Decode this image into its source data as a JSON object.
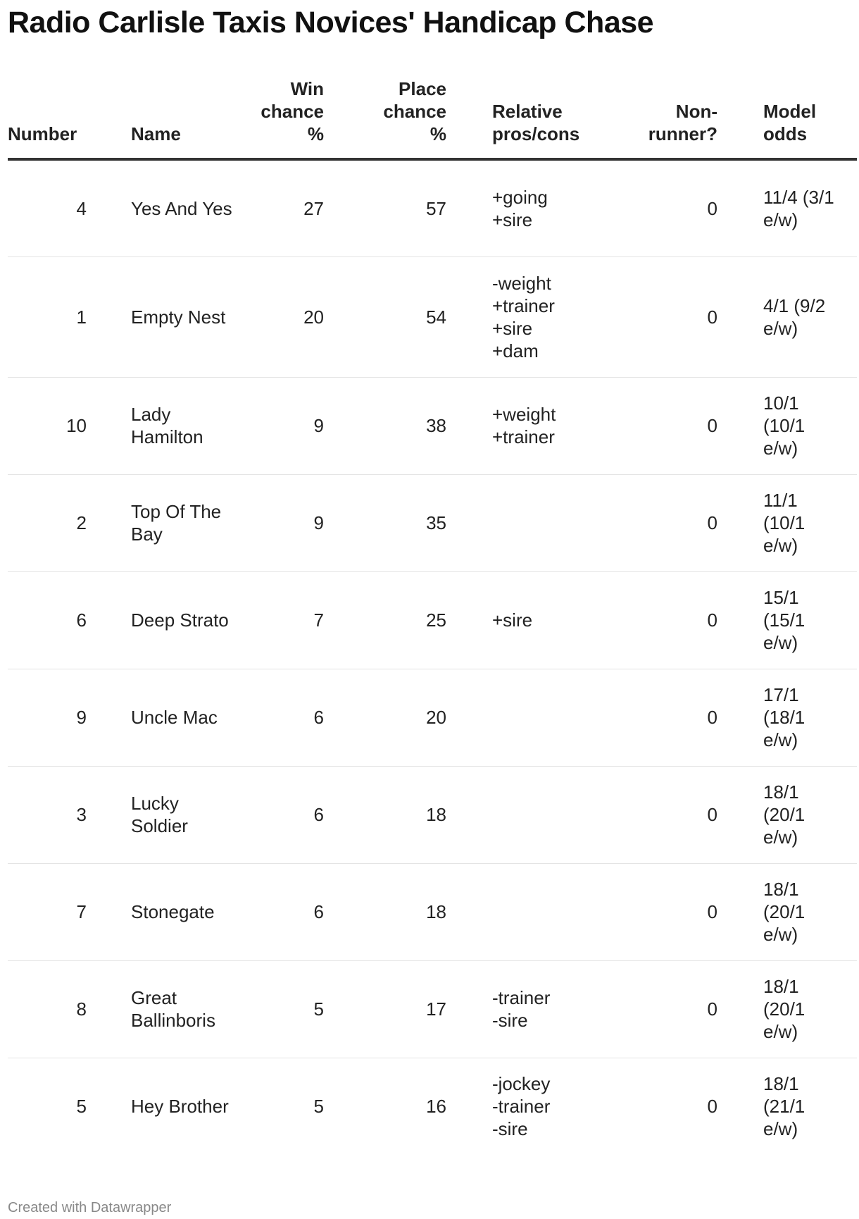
{
  "title": "Radio Carlisle Taxis Novices' Handicap Chase",
  "columns": [
    "Number",
    "Name",
    "Win chance %",
    "Place chance %",
    "Relative pros/cons",
    "Non-runner?",
    "Model odds"
  ],
  "rows": [
    {
      "number": "4",
      "name": "Yes And Yes",
      "win": "27",
      "place": "57",
      "proscons": "+going\n+sire",
      "nonrunner": "0",
      "odds": "11/4 (3/1 e/w)"
    },
    {
      "number": "1",
      "name": "Empty Nest",
      "win": "20",
      "place": "54",
      "proscons": "-weight\n+trainer\n+sire\n+dam",
      "nonrunner": "0",
      "odds": "4/1 (9/2 e/w)"
    },
    {
      "number": "10",
      "name": "Lady Hamilton",
      "win": "9",
      "place": "38",
      "proscons": "+weight\n+trainer",
      "nonrunner": "0",
      "odds": "10/1 (10/1 e/w)"
    },
    {
      "number": "2",
      "name": "Top Of The Bay",
      "win": "9",
      "place": "35",
      "proscons": "",
      "nonrunner": "0",
      "odds": "11/1 (10/1 e/w)"
    },
    {
      "number": "6",
      "name": "Deep Strato",
      "win": "7",
      "place": "25",
      "proscons": "+sire",
      "nonrunner": "0",
      "odds": "15/1 (15/1 e/w)"
    },
    {
      "number": "9",
      "name": "Uncle Mac",
      "win": "6",
      "place": "20",
      "proscons": "",
      "nonrunner": "0",
      "odds": "17/1 (18/1 e/w)"
    },
    {
      "number": "3",
      "name": "Lucky Soldier",
      "win": "6",
      "place": "18",
      "proscons": "",
      "nonrunner": "0",
      "odds": "18/1 (20/1 e/w)"
    },
    {
      "number": "7",
      "name": "Stonegate",
      "win": "6",
      "place": "18",
      "proscons": "",
      "nonrunner": "0",
      "odds": "18/1 (20/1 e/w)"
    },
    {
      "number": "8",
      "name": "Great Ballinboris",
      "win": "5",
      "place": "17",
      "proscons": "-trainer\n-sire",
      "nonrunner": "0",
      "odds": "18/1 (20/1 e/w)"
    },
    {
      "number": "5",
      "name": "Hey Brother",
      "win": "5",
      "place": "16",
      "proscons": "-jockey\n-trainer\n-sire",
      "nonrunner": "0",
      "odds": "18/1 (21/1 e/w)"
    }
  ],
  "footer": "Created with Datawrapper"
}
